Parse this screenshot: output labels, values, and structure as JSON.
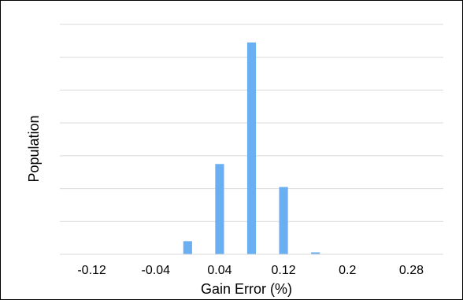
{
  "chart_data": {
    "type": "bar",
    "title": "",
    "xlabel": "Gain Error (%)",
    "ylabel": "Population",
    "x_tick_labels": [
      "-0.12",
      "-0.04",
      "0.04",
      "0.12",
      "0.2",
      "0.28"
    ],
    "x_ticks": [
      -0.12,
      -0.04,
      0.04,
      0.12,
      0.2,
      0.28
    ],
    "xlim": [
      -0.16,
      0.32
    ],
    "bin_width": 0.02,
    "grid": true,
    "y_gridlines": 7,
    "y_tick_labels_shown": false,
    "bar_color": "#6aaff2",
    "gridline_color": "#d9d9d9",
    "x_centers": [
      0.0,
      0.04,
      0.08,
      0.12,
      0.16
    ],
    "values": [
      0.4,
      2.75,
      6.45,
      2.05,
      0.06
    ]
  }
}
